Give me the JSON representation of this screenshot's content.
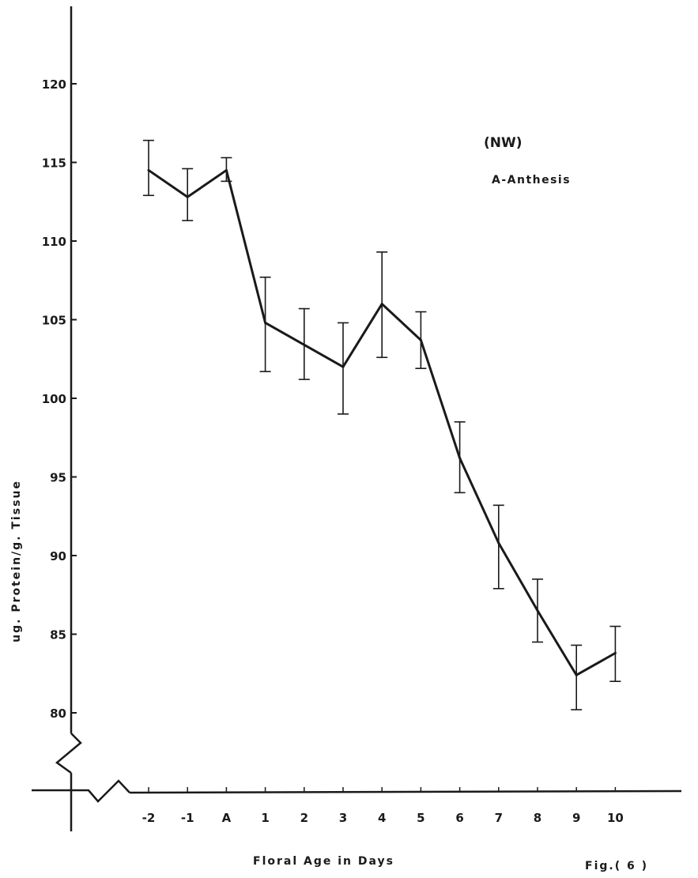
{
  "chart_data": {
    "type": "line",
    "categories": [
      "-2",
      "-1",
      "A",
      "1",
      "2",
      "3",
      "4",
      "5",
      "6",
      "7",
      "8",
      "9",
      "10"
    ],
    "series": [
      {
        "values": [
          114.5,
          112.8,
          114.5,
          104.8,
          103.4,
          102.0,
          106.0,
          103.7,
          96.2,
          90.8,
          86.5,
          82.4,
          83.8
        ],
        "err_low": [
          112.9,
          111.3,
          113.8,
          101.7,
          101.2,
          99.0,
          102.6,
          101.9,
          94.0,
          87.9,
          84.5,
          80.2,
          82.0
        ],
        "err_high": [
          116.4,
          114.6,
          115.3,
          107.7,
          105.7,
          104.8,
          109.3,
          105.5,
          98.5,
          93.2,
          88.5,
          84.3,
          85.5
        ]
      }
    ],
    "y_ticks": [
      "80",
      "85",
      "90",
      "95",
      "100",
      "105",
      "110",
      "115",
      "120"
    ],
    "ylim": [
      80,
      120
    ],
    "axis_break": true,
    "xlabel": "Floral Age in Days",
    "ylabel": "ug. Protein/g. Tissue",
    "annotations": [
      "(NW)",
      "A-Anthesis"
    ],
    "figure_label": "Fig.( 6 )",
    "grid": false,
    "legend": "none"
  }
}
